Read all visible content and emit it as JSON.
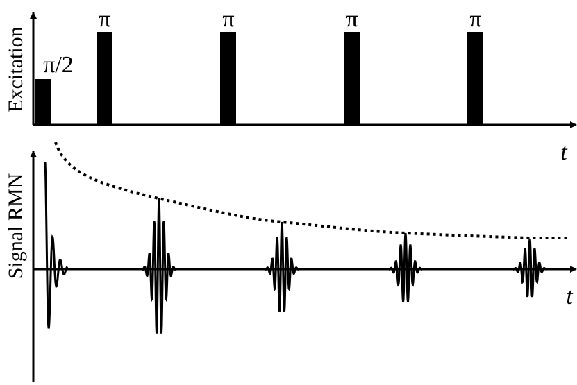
{
  "excitation": {
    "axis_label": "Excitation",
    "time_label": "t",
    "pulses": [
      {
        "label": "π/2"
      },
      {
        "label": "π"
      },
      {
        "label": "π"
      },
      {
        "label": "π"
      },
      {
        "label": "π"
      }
    ]
  },
  "signal": {
    "axis_label": "Signal RMN",
    "time_label": "t",
    "echo_count": 4,
    "envelope_style": "dotted"
  },
  "colors": {
    "ink": "#000000",
    "background": "#ffffff"
  }
}
